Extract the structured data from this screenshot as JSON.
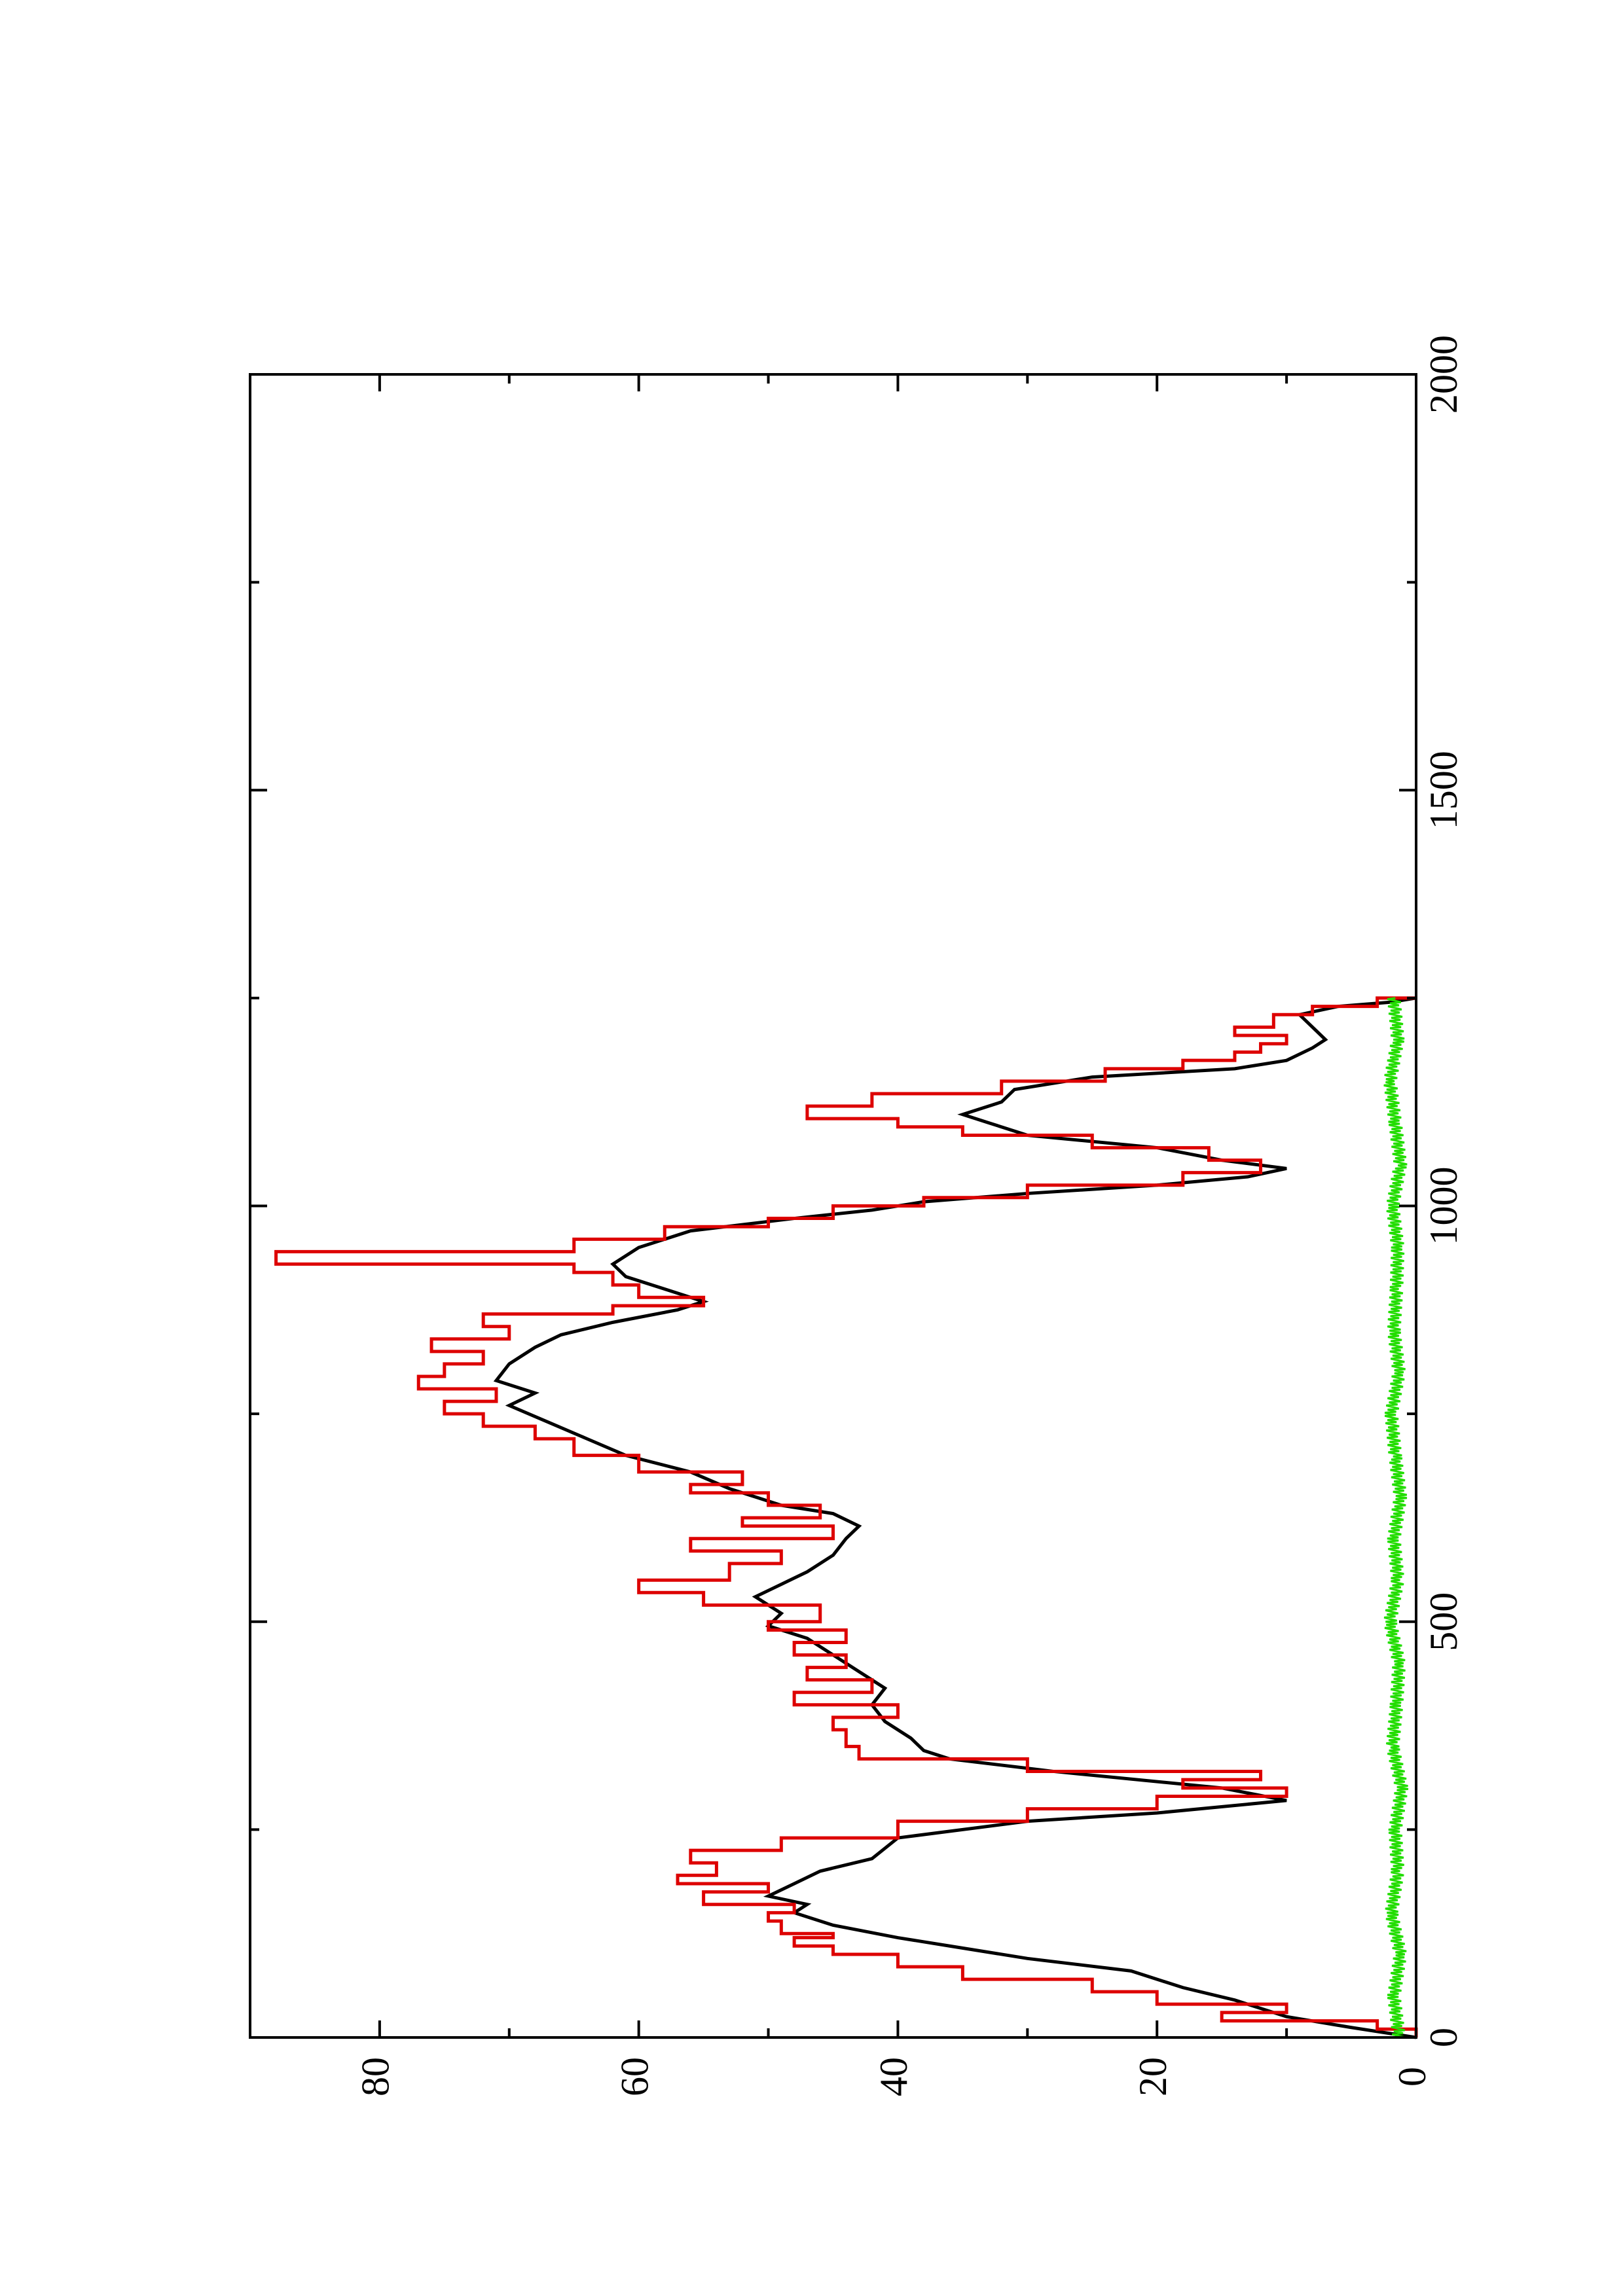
{
  "chart_data": {
    "type": "line",
    "title": "",
    "xlabel": "",
    "ylabel": "",
    "xlim": [
      0,
      2000
    ],
    "ylim": [
      0,
      90
    ],
    "x_ticks": [
      0,
      500,
      1000,
      1500,
      2000
    ],
    "x_tick_labels": [
      "0",
      "500",
      "1000",
      "1500",
      "2000"
    ],
    "y_ticks": [
      0,
      20,
      40,
      60,
      80
    ],
    "y_tick_labels": [
      "0",
      "20",
      "40",
      "60",
      "80"
    ],
    "orientation": "rotated 90° counter-clockwise",
    "grid": false,
    "legend": "none",
    "series": [
      {
        "color": "#000000",
        "style": "line",
        "points": [
          [
            0,
            0
          ],
          [
            12,
            5
          ],
          [
            25,
            10
          ],
          [
            45,
            14
          ],
          [
            60,
            18
          ],
          [
            80,
            22
          ],
          [
            95,
            30
          ],
          [
            110,
            36
          ],
          [
            120,
            40
          ],
          [
            135,
            45
          ],
          [
            150,
            48
          ],
          [
            160,
            47
          ],
          [
            170,
            50
          ],
          [
            185,
            48
          ],
          [
            200,
            46
          ],
          [
            215,
            42
          ],
          [
            240,
            40
          ],
          [
            260,
            30
          ],
          [
            270,
            20
          ],
          [
            285,
            10
          ],
          [
            300,
            15
          ],
          [
            320,
            28
          ],
          [
            335,
            36
          ],
          [
            345,
            38
          ],
          [
            360,
            39
          ],
          [
            380,
            41
          ],
          [
            400,
            42
          ],
          [
            420,
            41
          ],
          [
            440,
            43
          ],
          [
            460,
            45
          ],
          [
            480,
            47
          ],
          [
            495,
            50
          ],
          [
            510,
            49
          ],
          [
            530,
            51
          ],
          [
            545,
            49
          ],
          [
            560,
            47
          ],
          [
            580,
            45
          ],
          [
            600,
            44
          ],
          [
            615,
            43
          ],
          [
            630,
            45
          ],
          [
            640,
            49
          ],
          [
            650,
            51
          ],
          [
            660,
            53
          ],
          [
            680,
            56
          ],
          [
            700,
            61
          ],
          [
            720,
            64
          ],
          [
            740,
            67
          ],
          [
            760,
            70
          ],
          [
            775,
            68
          ],
          [
            790,
            71
          ],
          [
            810,
            70
          ],
          [
            830,
            68
          ],
          [
            845,
            66
          ],
          [
            860,
            62
          ],
          [
            875,
            57
          ],
          [
            885,
            55
          ],
          [
            900,
            58
          ],
          [
            915,
            61
          ],
          [
            930,
            62
          ],
          [
            950,
            60
          ],
          [
            970,
            56
          ],
          [
            985,
            48
          ],
          [
            995,
            42
          ],
          [
            1005,
            38
          ],
          [
            1015,
            30
          ],
          [
            1025,
            20
          ],
          [
            1035,
            13
          ],
          [
            1045,
            10
          ],
          [
            1055,
            15
          ],
          [
            1070,
            20
          ],
          [
            1085,
            30
          ],
          [
            1100,
            33
          ],
          [
            1110,
            35
          ],
          [
            1125,
            32
          ],
          [
            1140,
            31
          ],
          [
            1155,
            25
          ],
          [
            1165,
            14
          ],
          [
            1175,
            10
          ],
          [
            1190,
            8
          ],
          [
            1200,
            7
          ],
          [
            1215,
            8
          ],
          [
            1230,
            9
          ],
          [
            1240,
            6
          ],
          [
            1245,
            2
          ],
          [
            1250,
            0
          ]
        ]
      },
      {
        "color": "#dd0000",
        "style": "step",
        "points": [
          [
            0,
            0
          ],
          [
            10,
            3
          ],
          [
            20,
            15
          ],
          [
            30,
            10
          ],
          [
            40,
            20
          ],
          [
            55,
            25
          ],
          [
            70,
            35
          ],
          [
            85,
            40
          ],
          [
            100,
            45
          ],
          [
            110,
            48
          ],
          [
            120,
            45
          ],
          [
            125,
            49
          ],
          [
            140,
            50
          ],
          [
            150,
            48
          ],
          [
            160,
            55
          ],
          [
            175,
            50
          ],
          [
            185,
            57
          ],
          [
            195,
            54
          ],
          [
            210,
            56
          ],
          [
            225,
            49
          ],
          [
            240,
            40
          ],
          [
            260,
            30
          ],
          [
            275,
            20
          ],
          [
            290,
            10
          ],
          [
            300,
            18
          ],
          [
            310,
            12
          ],
          [
            320,
            30
          ],
          [
            335,
            43
          ],
          [
            350,
            44
          ],
          [
            370,
            45
          ],
          [
            385,
            40
          ],
          [
            400,
            48
          ],
          [
            415,
            42
          ],
          [
            430,
            47
          ],
          [
            445,
            44
          ],
          [
            460,
            48
          ],
          [
            475,
            44
          ],
          [
            490,
            50
          ],
          [
            500,
            46
          ],
          [
            520,
            55
          ],
          [
            535,
            60
          ],
          [
            550,
            53
          ],
          [
            570,
            49
          ],
          [
            585,
            56
          ],
          [
            600,
            45
          ],
          [
            615,
            52
          ],
          [
            625,
            46
          ],
          [
            640,
            50
          ],
          [
            655,
            56
          ],
          [
            665,
            52
          ],
          [
            680,
            60
          ],
          [
            700,
            65
          ],
          [
            720,
            68
          ],
          [
            735,
            72
          ],
          [
            750,
            75
          ],
          [
            765,
            71
          ],
          [
            780,
            77
          ],
          [
            795,
            75
          ],
          [
            810,
            72
          ],
          [
            825,
            76
          ],
          [
            840,
            70
          ],
          [
            855,
            72
          ],
          [
            870,
            62
          ],
          [
            880,
            55
          ],
          [
            890,
            60
          ],
          [
            905,
            62
          ],
          [
            920,
            65
          ],
          [
            930,
            88
          ],
          [
            945,
            65
          ],
          [
            960,
            58
          ],
          [
            975,
            50
          ],
          [
            985,
            45
          ],
          [
            1000,
            38
          ],
          [
            1010,
            30
          ],
          [
            1025,
            18
          ],
          [
            1040,
            12
          ],
          [
            1055,
            16
          ],
          [
            1070,
            25
          ],
          [
            1085,
            35
          ],
          [
            1095,
            40
          ],
          [
            1105,
            47
          ],
          [
            1120,
            42
          ],
          [
            1135,
            32
          ],
          [
            1150,
            24
          ],
          [
            1165,
            18
          ],
          [
            1175,
            14
          ],
          [
            1185,
            12
          ],
          [
            1195,
            10
          ],
          [
            1205,
            14
          ],
          [
            1215,
            11
          ],
          [
            1230,
            8
          ],
          [
            1240,
            3
          ],
          [
            1250,
            0
          ]
        ]
      },
      {
        "color": "#22dd00",
        "style": "noise",
        "points": [
          [
            0,
            1.2
          ],
          [
            50,
            1.6
          ],
          [
            100,
            1.1
          ],
          [
            150,
            1.8
          ],
          [
            200,
            1.3
          ],
          [
            250,
            1.5
          ],
          [
            300,
            1.0
          ],
          [
            350,
            1.7
          ],
          [
            400,
            1.4
          ],
          [
            450,
            1.2
          ],
          [
            500,
            1.9
          ],
          [
            550,
            1.3
          ],
          [
            600,
            1.6
          ],
          [
            650,
            1.1
          ],
          [
            700,
            1.5
          ],
          [
            750,
            1.8
          ],
          [
            800,
            1.2
          ],
          [
            850,
            1.6
          ],
          [
            900,
            1.4
          ],
          [
            950,
            1.3
          ],
          [
            1000,
            1.7
          ],
          [
            1050,
            1.1
          ],
          [
            1100,
            1.5
          ],
          [
            1150,
            1.9
          ],
          [
            1200,
            1.3
          ],
          [
            1250,
            1.6
          ]
        ]
      }
    ]
  }
}
